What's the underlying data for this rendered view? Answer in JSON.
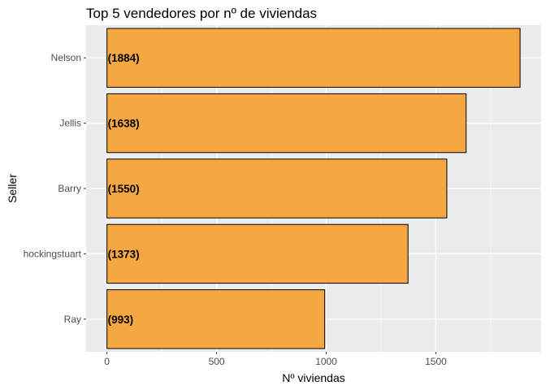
{
  "chart_data": {
    "type": "bar",
    "orientation": "horizontal",
    "title": "Top 5 vendedores por nº de viviendas",
    "xlabel": "Nº viviendas",
    "ylabel": "Seller",
    "categories": [
      "Nelson",
      "Jellis",
      "Barry",
      "hockingstuart",
      "Ray"
    ],
    "values": [
      1884,
      1638,
      1550,
      1373,
      993
    ],
    "data_labels": [
      "(1884)",
      "(1638)",
      "(1550)",
      "(1373)",
      "(993)"
    ],
    "xlim": [
      -95,
      1980
    ],
    "x_ticks": [
      0,
      500,
      1000,
      1500
    ],
    "x_tick_labels": [
      "0",
      "500",
      "1000",
      "1500"
    ],
    "grid": true,
    "colors": {
      "bar_fill": "#F5A742",
      "bar_stroke": "#000000",
      "panel_background": "#EBEBEB",
      "grid_major": "#FFFFFF"
    }
  }
}
